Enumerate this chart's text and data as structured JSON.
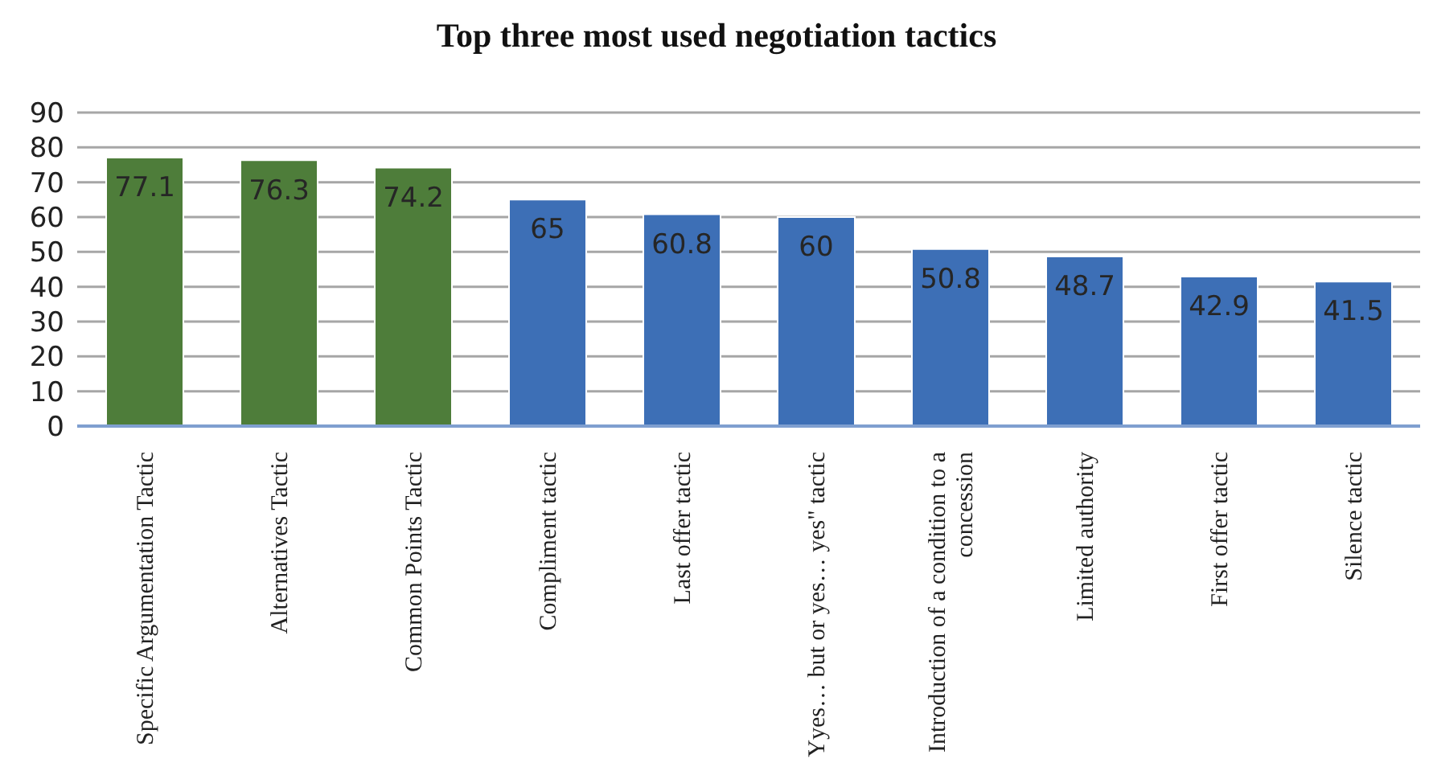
{
  "chart_data": {
    "type": "bar",
    "title": "Top three most used negotiation tactics",
    "categories": [
      "Specific Argumentation Tactic",
      "Alternatives Tactic",
      "Common Points Tactic",
      "Compliment tactic",
      "Last offer tactic",
      "Yyes… but or yes… yes\" tactic",
      "Introduction of a condition to a concession",
      "Limited authority",
      "First offer tactic",
      "Silence tactic"
    ],
    "values": [
      77.1,
      76.3,
      74.2,
      65,
      60.8,
      60,
      50.8,
      48.7,
      42.9,
      41.5
    ],
    "colors": [
      "#4e7d3a",
      "#4e7d3a",
      "#4e7d3a",
      "#3d6fb6",
      "#3d6fb6",
      "#3d6fb6",
      "#3d6fb6",
      "#3d6fb6",
      "#3d6fb6",
      "#3d6fb6"
    ],
    "ylim": [
      0,
      90
    ],
    "yticks": [
      0,
      10,
      20,
      30,
      40,
      50,
      60,
      70,
      80,
      90
    ],
    "grid": "y",
    "data_labels": true
  }
}
